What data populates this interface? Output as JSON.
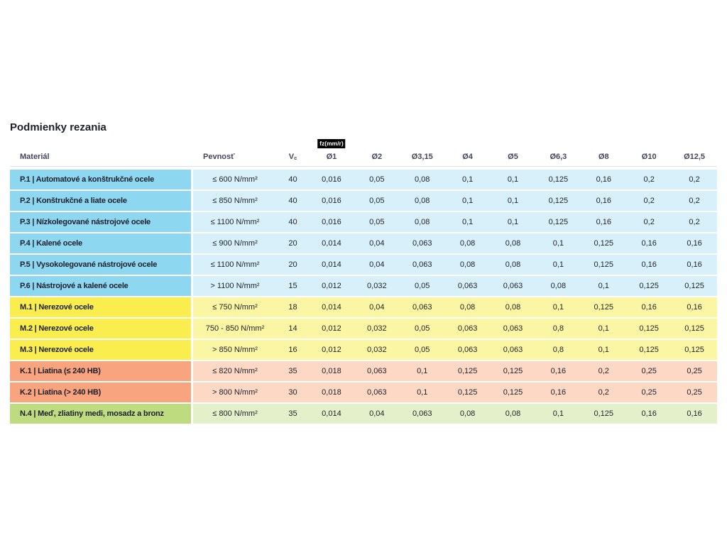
{
  "title": "Podmienky rezania",
  "table": {
    "headers": {
      "material": "Materiál",
      "pevnost": "Pevnosť",
      "vc_main": "V",
      "vc_sub": "c",
      "fz_badge": "fz(mm/r)",
      "diameters": [
        "Ø1",
        "Ø2",
        "Ø3,15",
        "Ø4",
        "Ø5",
        "Ø6,3",
        "Ø8",
        "Ø10",
        "Ø12,5"
      ]
    },
    "rows": [
      {
        "group": "blue",
        "material": "P.1 | Automatové a konštrukčné ocele",
        "pevnost": "≤ 600 N/mm²",
        "vc": "40",
        "values": [
          "0,016",
          "0,05",
          "0,08",
          "0,1",
          "0,1",
          "0,125",
          "0,16",
          "0,2",
          "0,2"
        ]
      },
      {
        "group": "blue",
        "material": "P.2 | Konštrukčné a liate ocele",
        "pevnost": "≤ 850 N/mm²",
        "vc": "40",
        "values": [
          "0,016",
          "0,05",
          "0,08",
          "0,1",
          "0,1",
          "0,125",
          "0,16",
          "0,2",
          "0,2"
        ]
      },
      {
        "group": "blue",
        "material": "P.3 | Nízkolegované nástrojové ocele",
        "pevnost": "≤ 1100 N/mm²",
        "vc": "40",
        "values": [
          "0,016",
          "0,05",
          "0,08",
          "0,1",
          "0,1",
          "0,125",
          "0,16",
          "0,2",
          "0,2"
        ]
      },
      {
        "group": "blue",
        "material": "P.4 | Kalené ocele",
        "pevnost": "≤ 900 N/mm²",
        "vc": "20",
        "values": [
          "0,014",
          "0,04",
          "0,063",
          "0,08",
          "0,08",
          "0,1",
          "0,125",
          "0,16",
          "0,16"
        ]
      },
      {
        "group": "blue",
        "material": "P.5 | Vysokolegované nástrojové ocele",
        "pevnost": "≤ 1100 N/mm²",
        "vc": "20",
        "values": [
          "0,014",
          "0,04",
          "0,063",
          "0,08",
          "0,08",
          "0,1",
          "0,125",
          "0,16",
          "0,16"
        ]
      },
      {
        "group": "blue",
        "material": "P.6 | Nástrojové a kalené ocele",
        "pevnost": "> 1100 N/mm²",
        "vc": "15",
        "values": [
          "0,012",
          "0,032",
          "0,05",
          "0,063",
          "0,063",
          "0,08",
          "0,1",
          "0,125",
          "0,125"
        ]
      },
      {
        "group": "yellow",
        "material": "M.1 | Nerezové ocele",
        "pevnost": "≤ 750 N/mm²",
        "vc": "18",
        "values": [
          "0,014",
          "0,04",
          "0,063",
          "0,08",
          "0,08",
          "0,1",
          "0,125",
          "0,16",
          "0,16"
        ]
      },
      {
        "group": "yellow",
        "material": "M.2 | Nerezové ocele",
        "pevnost": "750 - 850 N/mm²",
        "vc": "14",
        "values": [
          "0,012",
          "0,032",
          "0,05",
          "0,063",
          "0,063",
          "0,8",
          "0,1",
          "0,125",
          "0,125"
        ]
      },
      {
        "group": "yellow",
        "material": "M.3 | Nerezové ocele",
        "pevnost": "> 850 N/mm²",
        "vc": "16",
        "values": [
          "0,012",
          "0,032",
          "0,05",
          "0,063",
          "0,063",
          "0,8",
          "0,1",
          "0,125",
          "0,125"
        ]
      },
      {
        "group": "orange",
        "material": "K.1 | Liatina (≤ 240 HB)",
        "pevnost": "≤ 820 N/mm²",
        "vc": "35",
        "values": [
          "0,018",
          "0,063",
          "0,1",
          "0,125",
          "0,125",
          "0,16",
          "0,2",
          "0,25",
          "0,25"
        ]
      },
      {
        "group": "orange",
        "material": "K.2 | Liatina (> 240 HB)",
        "pevnost": "> 800 N/mm²",
        "vc": "30",
        "values": [
          "0,018",
          "0,063",
          "0,1",
          "0,125",
          "0,125",
          "0,16",
          "0,2",
          "0,25",
          "0,25"
        ]
      },
      {
        "group": "green",
        "material": "N.4 | Meď, zliatiny medi, mosadz a bronz",
        "pevnost": "≤ 800 N/mm²",
        "vc": "35",
        "values": [
          "0,014",
          "0,04",
          "0,063",
          "0,08",
          "0,08",
          "0,1",
          "0,125",
          "0,16",
          "0,16"
        ]
      }
    ]
  },
  "colors": {
    "groups": {
      "blue": {
        "strong": "#8dd7f0",
        "light": "#d7f0fa"
      },
      "yellow": {
        "strong": "#f9ee4e",
        "light": "#fbf6a3"
      },
      "orange": {
        "strong": "#f8a47e",
        "light": "#fcd8c5"
      },
      "green": {
        "strong": "#bedb7f",
        "light": "#e4f0ca"
      }
    },
    "badge_bg": "#000000",
    "badge_text": "#ffffff",
    "header_text": "#43465a",
    "body_text": "#23242e"
  }
}
